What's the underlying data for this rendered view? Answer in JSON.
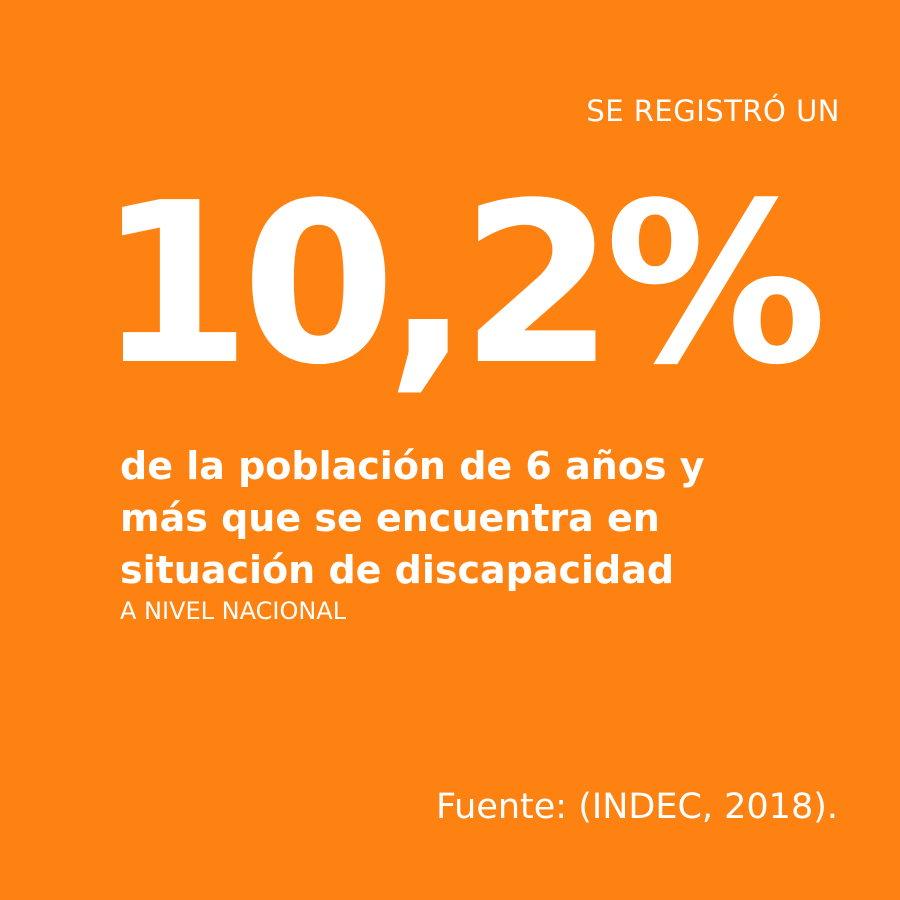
{
  "colors": {
    "background": "#fe8212",
    "text": "#ffffff"
  },
  "kicker": "SE REGISTRÓ UN",
  "figure": "10,2%",
  "description": {
    "line1": "de la población de 6 años y",
    "line2": "más que se encuentra en",
    "line3": "situación de discapacidad"
  },
  "scope": "A NIVEL NACIONAL",
  "source": "Fuente: (INDEC, 2018)."
}
